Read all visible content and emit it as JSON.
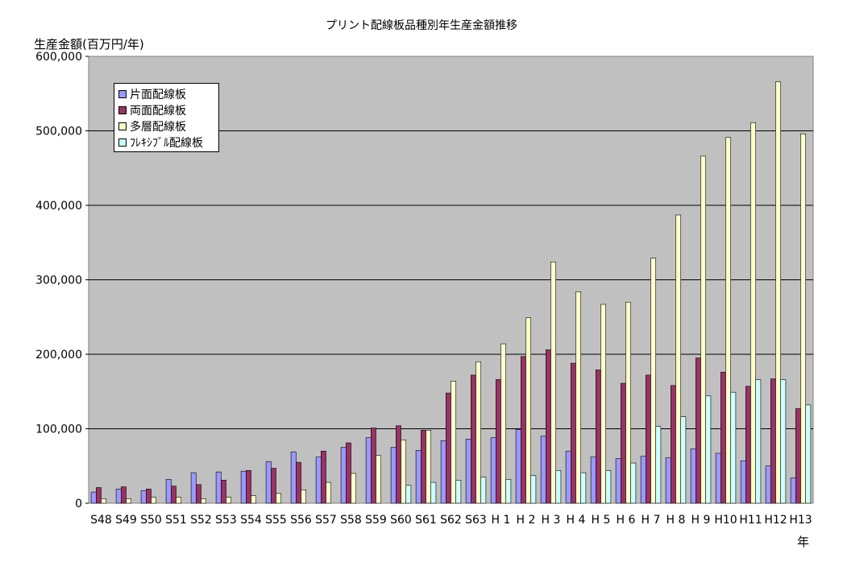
{
  "chart_data": {
    "type": "bar",
    "title": "プリント配線板品種別年生産金額推移",
    "ylabel": "生産金額(百万円/年)",
    "xlabel": "年",
    "ylim": [
      0,
      600000
    ],
    "yticks": [
      0,
      100000,
      200000,
      300000,
      400000,
      500000,
      600000
    ],
    "ytick_labels": [
      "0",
      "100,000",
      "200,000",
      "300,000",
      "400,000",
      "500,000",
      "600,000"
    ],
    "grid": true,
    "legend_position": "top-left",
    "categories": [
      "S48",
      "S49",
      "S50",
      "S51",
      "S52",
      "S53",
      "S54",
      "S55",
      "S56",
      "S57",
      "S58",
      "S59",
      "S60",
      "S61",
      "S62",
      "S63",
      "H 1",
      "H 2",
      "H 3",
      "H 4",
      "H 5",
      "H 6",
      "H 7",
      "H 8",
      "H 9",
      "H10",
      "H11",
      "H12",
      "H13"
    ],
    "series": [
      {
        "name": "片面配線板",
        "color": "#9999ff",
        "values": [
          15000,
          19000,
          17000,
          32000,
          41000,
          42000,
          43000,
          56000,
          69000,
          62000,
          75000,
          88000,
          75000,
          71000,
          84000,
          86000,
          88000,
          99000,
          90000,
          70000,
          62000,
          60000,
          63000,
          61000,
          73000,
          67000,
          57000,
          50000,
          34000
        ]
      },
      {
        "name": "両面配線板",
        "color": "#993366",
        "values": [
          21000,
          22000,
          19000,
          23000,
          25000,
          31000,
          44000,
          47000,
          55000,
          70000,
          81000,
          101000,
          104000,
          98000,
          148000,
          172000,
          166000,
          197000,
          206000,
          188000,
          179000,
          161000,
          172000,
          158000,
          195000,
          176000,
          157000,
          167000,
          127000
        ]
      },
      {
        "name": "多層配線板",
        "color": "#ffffcc",
        "values": [
          6000,
          6000,
          8000,
          8000,
          6000,
          8000,
          10000,
          13000,
          18000,
          28000,
          40000,
          64000,
          85000,
          98000,
          164000,
          190000,
          214000,
          249000,
          324000,
          284000,
          267000,
          270000,
          329000,
          387000,
          466000,
          491000,
          511000,
          566000,
          496000
        ]
      },
      {
        "name": "ﾌﾚｷｼﾌﾞﾙ配線板",
        "color": "#ccffff",
        "values": [
          0,
          0,
          0,
          0,
          0,
          0,
          0,
          0,
          0,
          0,
          0,
          0,
          24000,
          28000,
          31000,
          35000,
          32000,
          37000,
          44000,
          41000,
          44000,
          54000,
          103000,
          116000,
          144000,
          149000,
          166000,
          166000,
          132000
        ]
      }
    ]
  }
}
